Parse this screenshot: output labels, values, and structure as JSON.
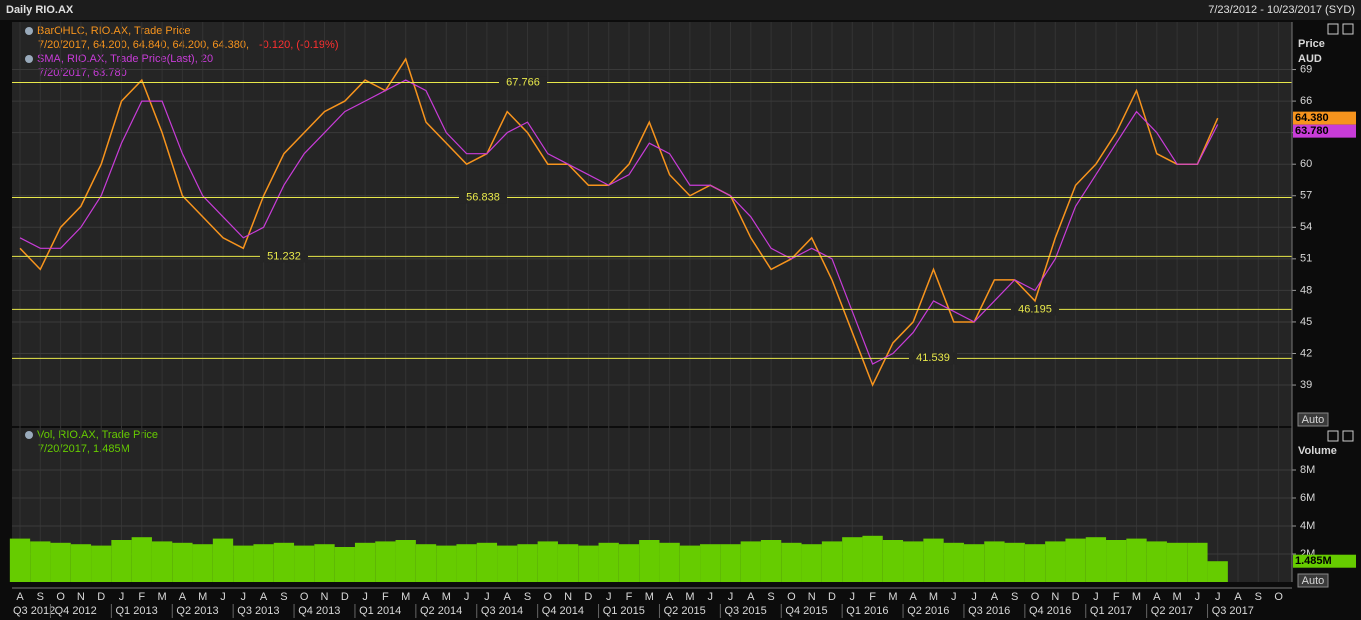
{
  "header": {
    "title": "Daily RIO.AX",
    "range": "7/23/2012 - 10/23/2017 (SYD)"
  },
  "x_axis": {
    "months": [
      "A",
      "S",
      "O",
      "N",
      "D",
      "J",
      "F",
      "M",
      "A",
      "M",
      "J",
      "J",
      "A",
      "S",
      "O",
      "N",
      "D",
      "J",
      "F",
      "M",
      "A",
      "M",
      "J",
      "J",
      "A",
      "S",
      "O",
      "N",
      "D",
      "J",
      "F",
      "M",
      "A",
      "M",
      "J",
      "J",
      "A",
      "S",
      "O",
      "N",
      "D",
      "J",
      "F",
      "M",
      "A",
      "M",
      "J",
      "J",
      "A",
      "S",
      "O",
      "N",
      "D",
      "J",
      "F",
      "M",
      "A",
      "M",
      "J",
      "J",
      "A",
      "S",
      "O"
    ],
    "quarters": [
      "Q3 2012",
      "Q4 2012",
      "Q1 2013",
      "Q2 2013",
      "Q3 2013",
      "Q4 2013",
      "Q1 2014",
      "Q2 2014",
      "Q3 2014",
      "Q4 2014",
      "Q1 2015",
      "Q2 2015",
      "Q3 2015",
      "Q4 2015",
      "Q1 2016",
      "Q2 2016",
      "Q3 2016",
      "Q4 2016",
      "Q1 2017",
      "Q2 2017",
      "Q3 2017"
    ]
  },
  "chart_data": [
    {
      "type": "line",
      "series": [
        {
          "name": "BarOHLC, RIO.AX, Trade Price",
          "color": "#f7941d",
          "values": [
            52,
            50,
            54,
            56,
            60,
            66,
            68,
            63,
            57,
            55,
            53,
            52,
            57,
            61,
            63,
            65,
            66,
            68,
            67,
            70,
            64,
            62,
            60,
            61,
            65,
            63,
            60,
            60,
            58,
            58,
            60,
            64,
            59,
            57,
            58,
            57,
            53,
            50,
            51,
            53,
            49,
            44,
            39,
            43,
            45,
            50,
            45,
            45,
            49,
            49,
            47,
            53,
            58,
            60,
            63,
            67,
            61,
            60,
            60,
            64.38,
            null,
            null,
            null
          ]
        },
        {
          "name": "SMA, RIO.AX, Trade Price(Last), 20",
          "color": "#c83cd8",
          "values": [
            53,
            52,
            52,
            54,
            57,
            62,
            66,
            66,
            61,
            57,
            55,
            53,
            54,
            58,
            61,
            63,
            65,
            66,
            67,
            68,
            67,
            63,
            61,
            61,
            63,
            64,
            61,
            60,
            59,
            58,
            59,
            62,
            61,
            58,
            58,
            57,
            55,
            52,
            51,
            52,
            51,
            46,
            41,
            42,
            44,
            47,
            46,
            45,
            47,
            49,
            48,
            51,
            56,
            59,
            62,
            65,
            63,
            60,
            60,
            63.78,
            null,
            null,
            null
          ]
        }
      ],
      "ohlc_text": "7/20/2017, 64.200, 64.840, 64.200, 64.380,",
      "change_text": "-0.120, (-0.19%)",
      "sma_text": "7/20/2017, 63.780",
      "y_label": "Price",
      "y_unit": "AUD",
      "scale_button": "Auto",
      "last_tags": [
        "64.380",
        "63.780"
      ],
      "ylim": [
        35.2,
        72
      ],
      "yticks": [
        39,
        42,
        45,
        48,
        51,
        54,
        57,
        60,
        63,
        66,
        69
      ],
      "levels": [
        67.766,
        56.838,
        51.232,
        46.195,
        41.539
      ],
      "level_color": "#e8e84a",
      "grid": true
    },
    {
      "type": "bar",
      "series": [
        {
          "name": "Vol, RIO.AX, Trade Price",
          "color": "#66cc00",
          "values": [
            3100000,
            2900000,
            2800000,
            2700000,
            2600000,
            3000000,
            3200000,
            2900000,
            2800000,
            2700000,
            3100000,
            2600000,
            2700000,
            2800000,
            2600000,
            2700000,
            2500000,
            2800000,
            2900000,
            3000000,
            2700000,
            2600000,
            2700000,
            2800000,
            2600000,
            2700000,
            2900000,
            2700000,
            2600000,
            2800000,
            2700000,
            3000000,
            2800000,
            2600000,
            2700000,
            2700000,
            2900000,
            3000000,
            2800000,
            2700000,
            2900000,
            3200000,
            3300000,
            3000000,
            2900000,
            3100000,
            2800000,
            2700000,
            2900000,
            2800000,
            2700000,
            2900000,
            3100000,
            3200000,
            3000000,
            3100000,
            2900000,
            2800000,
            2800000,
            1485000,
            null,
            null,
            null
          ]
        }
      ],
      "detail_text": "7/20/2017, 1.485M",
      "y_label": "Volume",
      "last_tag": "1.485M",
      "scale_button": "Auto",
      "ylim": [
        0,
        11000000
      ],
      "yticks": [
        {
          "value": 2000000,
          "label": "2M"
        },
        {
          "value": 4000000,
          "label": "4M"
        },
        {
          "value": 6000000,
          "label": "6M"
        },
        {
          "value": 8000000,
          "label": "8M"
        }
      ],
      "grid": true
    }
  ]
}
